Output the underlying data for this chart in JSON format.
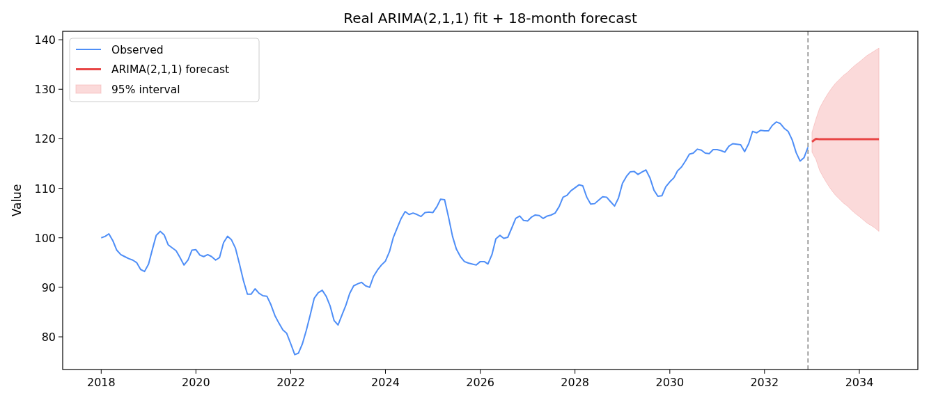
{
  "chart_data": {
    "type": "line",
    "title": "Real ARIMA(2,1,1) fit + 18-month forecast",
    "ylabel": "Value",
    "xlim": [
      "2017-03-10",
      "2035-03-28"
    ],
    "xticks": [
      "2018",
      "2020",
      "2022",
      "2024",
      "2026",
      "2028",
      "2030",
      "2032",
      "2034"
    ],
    "ylim": [
      73.4,
      141.7
    ],
    "yticks": [
      80,
      90,
      100,
      110,
      120,
      130,
      140
    ],
    "grid": false,
    "annotations": [
      "95% interval"
    ],
    "legend": "top left",
    "ref_lines": [
      {
        "axis": "x",
        "value": "2032-12",
        "color": "#808080",
        "line_style": "dashed"
      }
    ],
    "series": [
      {
        "name": "Observed",
        "color": "#4e8ef7",
        "x": [
          "2018-01",
          "2018-02",
          "2018-03",
          "2018-04",
          "2018-05",
          "2018-06",
          "2018-07",
          "2018-08",
          "2018-09",
          "2018-10",
          "2018-11",
          "2018-12",
          "2019-01",
          "2019-02",
          "2019-03",
          "2019-04",
          "2019-05",
          "2019-06",
          "2019-07",
          "2019-08",
          "2019-09",
          "2019-10",
          "2019-11",
          "2019-12",
          "2020-01",
          "2020-02",
          "2020-03",
          "2020-04",
          "2020-05",
          "2020-06",
          "2020-07",
          "2020-08",
          "2020-09",
          "2020-10",
          "2020-11",
          "2020-12",
          "2021-01",
          "2021-02",
          "2021-03",
          "2021-04",
          "2021-05",
          "2021-06",
          "2021-07",
          "2021-08",
          "2021-09",
          "2021-10",
          "2021-11",
          "2021-12",
          "2022-01",
          "2022-02",
          "2022-03",
          "2022-04",
          "2022-05",
          "2022-06",
          "2022-07",
          "2022-08",
          "2022-09",
          "2022-10",
          "2022-11",
          "2022-12",
          "2023-01",
          "2023-02",
          "2023-03",
          "2023-04",
          "2023-05",
          "2023-06",
          "2023-07",
          "2023-08",
          "2023-09",
          "2023-10",
          "2023-11",
          "2023-12",
          "2024-01",
          "2024-02",
          "2024-03",
          "2024-04",
          "2024-05",
          "2024-06",
          "2024-07",
          "2024-08",
          "2024-09",
          "2024-10",
          "2024-11",
          "2024-12",
          "2025-01",
          "2025-02",
          "2025-03",
          "2025-04",
          "2025-05",
          "2025-06",
          "2025-07",
          "2025-08",
          "2025-09",
          "2025-10",
          "2025-11",
          "2025-12",
          "2026-01",
          "2026-02",
          "2026-03",
          "2026-04",
          "2026-05",
          "2026-06",
          "2026-07",
          "2026-08",
          "2026-09",
          "2026-10",
          "2026-11",
          "2026-12",
          "2027-01",
          "2027-02",
          "2027-03",
          "2027-04",
          "2027-05",
          "2027-06",
          "2027-07",
          "2027-08",
          "2027-09",
          "2027-10",
          "2027-11",
          "2027-12",
          "2028-01",
          "2028-02",
          "2028-03",
          "2028-04",
          "2028-05",
          "2028-06",
          "2028-07",
          "2028-08",
          "2028-09",
          "2028-10",
          "2028-11",
          "2028-12",
          "2029-01",
          "2029-02",
          "2029-03",
          "2029-04",
          "2029-05",
          "2029-06",
          "2029-07",
          "2029-08",
          "2029-09",
          "2029-10",
          "2029-11",
          "2029-12",
          "2030-01",
          "2030-02",
          "2030-03",
          "2030-04",
          "2030-05",
          "2030-06",
          "2030-07",
          "2030-08",
          "2030-09",
          "2030-10",
          "2030-11",
          "2030-12",
          "2031-01",
          "2031-02",
          "2031-03",
          "2031-04",
          "2031-05",
          "2031-06",
          "2031-07",
          "2031-08",
          "2031-09",
          "2031-10",
          "2031-11",
          "2031-12",
          "2032-01",
          "2032-02",
          "2032-03",
          "2032-04",
          "2032-05",
          "2032-06",
          "2032-07",
          "2032-08",
          "2032-09",
          "2032-10",
          "2032-11",
          "2032-12"
        ],
        "values": [
          100.0,
          100.3,
          100.8,
          99.4,
          97.5,
          96.6,
          96.2,
          95.8,
          95.5,
          95.0,
          93.6,
          93.2,
          94.7,
          97.8,
          100.5,
          101.3,
          100.6,
          98.6,
          98.0,
          97.4,
          96.0,
          94.5,
          95.5,
          97.5,
          97.6,
          96.5,
          96.2,
          96.6,
          96.2,
          95.5,
          96.0,
          99.0,
          100.3,
          99.6,
          97.9,
          94.8,
          91.4,
          88.6,
          88.6,
          89.7,
          88.8,
          88.3,
          88.2,
          86.5,
          84.3,
          82.8,
          81.4,
          80.7,
          78.6,
          76.4,
          76.7,
          78.6,
          81.3,
          84.5,
          87.8,
          88.9,
          89.4,
          88.2,
          86.2,
          83.3,
          82.4,
          84.5,
          86.3,
          88.8,
          90.3,
          90.7,
          91.0,
          90.3,
          90.0,
          92.2,
          93.5,
          94.5,
          95.3,
          97.2,
          100.0,
          102.0,
          103.9,
          105.3,
          104.7,
          105.0,
          104.7,
          104.3,
          105.1,
          105.2,
          105.1,
          106.3,
          107.8,
          107.7,
          104.2,
          100.3,
          97.7,
          96.2,
          95.2,
          94.9,
          94.7,
          94.5,
          95.2,
          95.2,
          94.7,
          96.6,
          99.8,
          100.5,
          99.9,
          100.1,
          102.0,
          103.9,
          104.4,
          103.5,
          103.4,
          104.2,
          104.6,
          104.5,
          103.9,
          104.4,
          104.6,
          105.0,
          106.3,
          108.2,
          108.6,
          109.5,
          110.1,
          110.7,
          110.5,
          108.2,
          106.8,
          106.9,
          107.6,
          108.3,
          108.2,
          107.3,
          106.4,
          108.0,
          111.0,
          112.4,
          113.3,
          113.4,
          112.8,
          113.3,
          113.7,
          112.1,
          109.6,
          108.4,
          108.5,
          110.3,
          111.3,
          112.1,
          113.5,
          114.3,
          115.5,
          116.9,
          117.1,
          117.9,
          117.7,
          117.1,
          117.0,
          117.8,
          117.8,
          117.6,
          117.3,
          118.5,
          119.0,
          118.9,
          118.8,
          117.4,
          119.0,
          121.5,
          121.2,
          121.7,
          121.6,
          121.6,
          122.7,
          123.4,
          123.1,
          122.1,
          121.5,
          119.8,
          117.2,
          115.5,
          116.2,
          118.3
        ]
      },
      {
        "name": "ARIMA(2,1,1) forecast",
        "color": "#e84545",
        "x": [
          "2033-01",
          "2033-02",
          "2033-03",
          "2033-04",
          "2033-05",
          "2033-06",
          "2033-07",
          "2033-08",
          "2033-09",
          "2033-10",
          "2033-11",
          "2033-12",
          "2034-01",
          "2034-02",
          "2034-03",
          "2034-04",
          "2034-05",
          "2034-06"
        ],
        "values": [
          119.4,
          120.0,
          119.9,
          119.9,
          119.9,
          119.9,
          119.9,
          119.9,
          119.9,
          119.9,
          119.9,
          119.9,
          119.9,
          119.9,
          119.9,
          119.9,
          119.9,
          119.9
        ],
        "lower": [
          117.3,
          115.8,
          113.6,
          112.1,
          110.8,
          109.6,
          108.6,
          107.8,
          107.0,
          106.4,
          105.6,
          104.9,
          104.3,
          103.6,
          103.0,
          102.5,
          102.0,
          101.3
        ],
        "upper": [
          121.3,
          124.0,
          126.2,
          127.7,
          129.0,
          130.2,
          131.2,
          132.0,
          132.8,
          133.4,
          134.2,
          134.9,
          135.5,
          136.2,
          136.8,
          137.3,
          137.8,
          138.3
        ]
      }
    ]
  }
}
